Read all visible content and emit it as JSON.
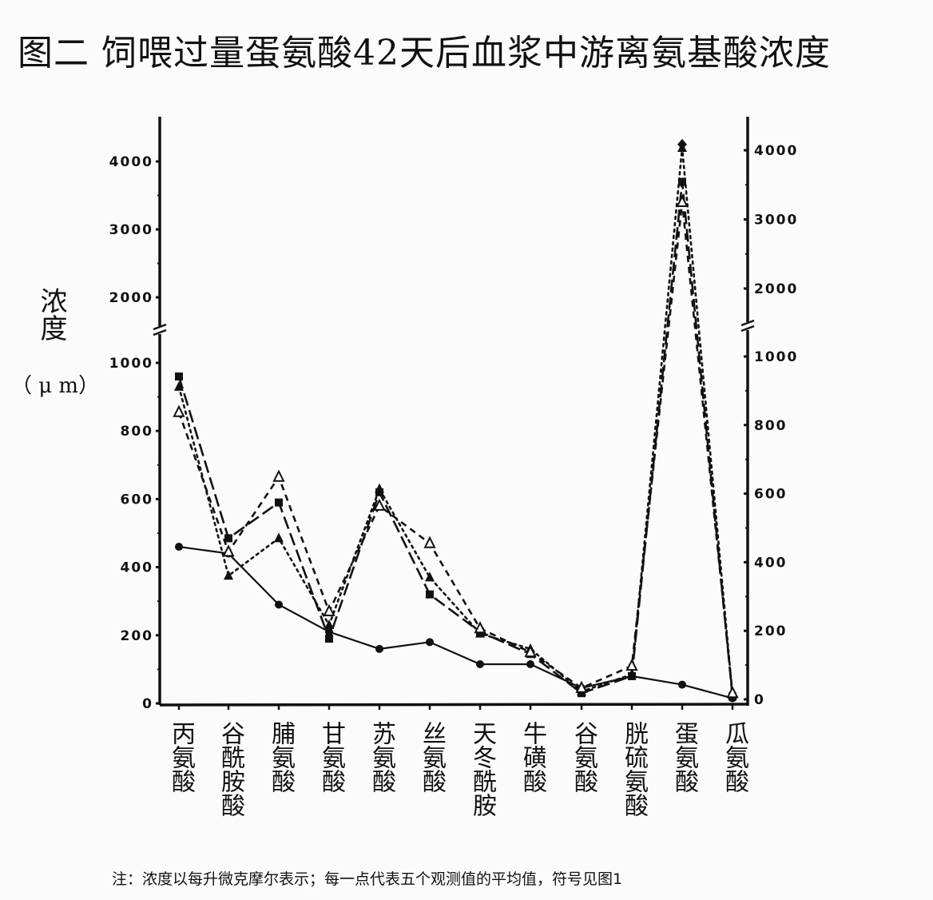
{
  "title": "图二  饲喂过量蛋氨酸42天后血浆中游离氨基酸浓度",
  "ylabel": {
    "main": "浓度",
    "unit": "（ μ m）"
  },
  "note": "注：浓度以每升微克摩尔表示；每一点代表五个观测值的平均值，符号见图1",
  "axes": {
    "left_ticks_lower": [
      "0",
      "200",
      "400",
      "600",
      "800",
      "1000"
    ],
    "left_ticks_upper": [
      "2000",
      "3000",
      "4000"
    ],
    "right_ticks_lower": [
      "0",
      "200",
      "400",
      "600",
      "800",
      "1000"
    ],
    "right_ticks_upper": [
      "2000",
      "3000",
      "4000"
    ]
  },
  "categories": [
    "丙氨酸",
    "谷酰胺酸",
    "脯氨酸",
    "甘氨酸",
    "苏氨酸",
    "丝氨酸",
    "天冬酰胺",
    "牛磺酸",
    "谷氨酸",
    "胱硫氨酸",
    "蛋氨酸",
    "瓜氨酸"
  ],
  "chart_data": {
    "type": "line",
    "title": "图二  饲喂过量蛋氨酸42天后血浆中游离氨基酸浓度",
    "xlabel": "",
    "ylabel": "浓度（μm）",
    "ylim": [
      0,
      4400
    ],
    "y_axis_break": [
      1100,
      1600
    ],
    "grid": false,
    "legend": "none (symbols refer to Figure 1)",
    "categories": [
      "丙氨酸",
      "谷酰胺酸",
      "脯氨酸",
      "甘氨酸",
      "苏氨酸",
      "丝氨酸",
      "天冬酰胺",
      "牛磺酸",
      "谷氨酸",
      "胱硫氨酸",
      "蛋氨酸",
      "瓜氨酸"
    ],
    "series": [
      {
        "name": "实心圆 (实线)",
        "marker": "filled-circle",
        "line": "solid",
        "values": [
          460,
          440,
          290,
          210,
          160,
          180,
          115,
          115,
          45,
          80,
          55,
          15
        ]
      },
      {
        "name": "实心方块 (长虚线)",
        "marker": "filled-square",
        "line": "long-dash",
        "values": [
          960,
          485,
          590,
          190,
          620,
          320,
          210,
          145,
          30,
          80,
          3700,
          20
        ]
      },
      {
        "name": "实心三角 (点线)",
        "marker": "filled-triangle",
        "line": "dotted",
        "values": [
          930,
          375,
          485,
          230,
          630,
          370,
          205,
          160,
          35,
          85,
          4200,
          25
        ]
      },
      {
        "name": "空心三角 (短虚线)",
        "marker": "open-triangle",
        "line": "dashed",
        "values": [
          855,
          445,
          665,
          270,
          580,
          470,
          220,
          150,
          45,
          110,
          3400,
          30
        ]
      }
    ]
  }
}
